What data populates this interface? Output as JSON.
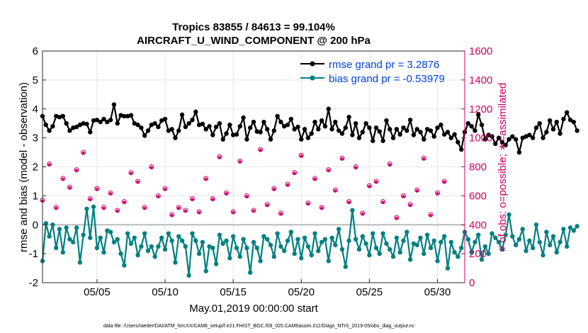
{
  "chart_data": {
    "type": "line",
    "title_line1": "Tropics 83855 / 84613 = 99.104%",
    "title_line2": "AIRCRAFT_U_WIND_COMPONENT @ 200 hPa",
    "xlabel": "May.01,2019 00:00:00 start",
    "ylabel_left": "rmse and bias (model - observation)",
    "ylabel_right": "# of obs: o=possible; ∗=assimilated",
    "ylim_left": [
      -2,
      6
    ],
    "ylim_right": [
      0,
      1600
    ],
    "xlim": [
      1,
      32
    ],
    "yticks_left": [
      "-2",
      "-1",
      "0",
      "1",
      "2",
      "3",
      "4",
      "5",
      "6"
    ],
    "yticks_right": [
      "0",
      "200",
      "400",
      "600",
      "800",
      "1000",
      "1200",
      "1400",
      "1600"
    ],
    "xticks": [
      {
        "label": "05/05",
        "day": 5
      },
      {
        "label": "05/10",
        "day": 10
      },
      {
        "label": "05/15",
        "day": 15
      },
      {
        "label": "05/20",
        "day": 20
      },
      {
        "label": "05/25",
        "day": 25
      },
      {
        "label": "05/30",
        "day": 30
      }
    ],
    "legend": {
      "rmse_label": "rmse grand pr = 3.2876",
      "bias_label": "bias grand pr = -0.53979",
      "placement": "top-right"
    },
    "colors": {
      "rmse": "#000000",
      "bias": "#008080",
      "obs": "#cc0066",
      "zero_line": "#bbbbbb"
    },
    "series": [
      {
        "name": "rmse",
        "x_start": 1.0,
        "x_step": 0.25,
        "values": [
          3.75,
          3.45,
          3.25,
          3.4,
          3.75,
          3.72,
          3.75,
          3.5,
          3.25,
          3.35,
          3.38,
          3.45,
          3.5,
          3.48,
          3.2,
          3.6,
          3.62,
          3.55,
          3.65,
          3.55,
          3.62,
          4.15,
          3.5,
          3.78,
          3.75,
          3.75,
          3.78,
          3.5,
          3.45,
          3.35,
          3.08,
          3.25,
          3.45,
          3.5,
          3.38,
          3.6,
          3.65,
          3.25,
          3.3,
          3.0,
          3.25,
          3.8,
          3.38,
          3.5,
          3.62,
          3.9,
          3.45,
          3.48,
          3.3,
          3.4,
          3.1,
          3.38,
          3.5,
          2.95,
          3.15,
          3.45,
          3.1,
          3.12,
          3.4,
          3.7,
          2.95,
          3.35,
          3.55,
          3.22,
          3.2,
          3.55,
          3.3,
          2.95,
          3.25,
          3.75,
          3.55,
          3.4,
          3.45,
          3.65,
          3.3,
          3.38,
          2.95,
          3.3,
          3.0,
          3.15,
          3.55,
          3.3,
          3.6,
          3.4,
          4.0,
          3.3,
          3.55,
          3.25,
          3.15,
          3.35,
          3.72,
          3.1,
          3.5,
          3.0,
          3.2,
          3.5,
          3.35,
          2.9,
          3.35,
          3.22,
          2.9,
          3.6,
          3.3,
          3.0,
          3.3,
          3.12,
          3.35,
          3.25,
          3.62,
          3.1,
          3.3,
          3.2,
          2.95,
          3.3,
          3.25,
          3.05,
          3.35,
          3.45,
          3.12,
          3.2,
          3.0,
          3.12,
          2.85,
          2.6,
          3.2,
          3.5,
          3.4,
          3.25,
          3.8,
          3.45,
          2.95,
          3.1,
          3.05,
          2.8,
          3.0,
          2.85,
          2.75,
          2.95,
          3.05,
          2.95,
          2.5,
          3.0,
          3.05,
          3.1,
          3.0,
          3.35,
          3.5,
          3.0,
          3.2,
          3.6,
          3.3,
          3.55,
          3.15,
          3.65,
          3.88,
          3.62,
          3.55,
          3.25
        ]
      },
      {
        "name": "bias",
        "x_start": 1.0,
        "x_step": 0.25,
        "values": [
          -1.25,
          0.05,
          -0.4,
          0.0,
          -0.8,
          -0.15,
          -0.95,
          -0.1,
          -0.5,
          -0.6,
          -0.1,
          -1.3,
          -0.35,
          0.55,
          -0.45,
          0.62,
          -0.8,
          -0.45,
          -0.95,
          -0.2,
          -0.25,
          -0.6,
          -0.5,
          -1.0,
          -1.4,
          -0.3,
          -0.65,
          -0.45,
          -1.05,
          -0.75,
          -0.3,
          -0.9,
          -0.75,
          -1.1,
          -0.75,
          -0.45,
          -0.85,
          -0.3,
          -0.55,
          -1.3,
          -0.4,
          -0.55,
          -0.75,
          -1.75,
          -0.3,
          -0.55,
          -1.0,
          -0.6,
          -1.6,
          -0.75,
          -0.8,
          -1.35,
          -0.35,
          -0.65,
          -0.55,
          -1.15,
          -0.4,
          -0.8,
          -1.1,
          -0.5,
          -0.8,
          -1.65,
          -0.6,
          -0.8,
          -1.25,
          -0.4,
          -0.5,
          -0.7,
          -1.1,
          -0.3,
          -0.75,
          -0.9,
          -0.55,
          -0.25,
          -1.0,
          -0.5,
          -1.15,
          -0.45,
          -0.75,
          -1.05,
          -0.3,
          -0.9,
          -0.6,
          -0.5,
          -1.25,
          -0.45,
          -0.7,
          -0.15,
          -0.85,
          -1.45,
          -0.55,
          0.5,
          -0.5,
          -0.85,
          -0.4,
          -0.65,
          -1.05,
          -0.3,
          -0.8,
          -1.0,
          -0.3,
          -0.65,
          -0.85,
          -1.1,
          -0.45,
          -0.95,
          -0.55,
          -0.25,
          -1.2,
          -0.65,
          -0.7,
          -0.45,
          -1.0,
          -0.35,
          -0.8,
          -0.55,
          -1.25,
          -0.6,
          -0.4,
          -1.5,
          -0.6,
          -0.95,
          -1.1,
          -0.8,
          -0.25,
          -0.5,
          -0.95,
          -0.6,
          -0.35,
          -1.2,
          -0.75,
          -1.0,
          -0.3,
          -0.45,
          -0.6,
          -0.85,
          -0.35,
          0.35,
          -0.4,
          -0.7,
          -0.5,
          -0.15,
          -0.9,
          -0.55,
          -0.8,
          0.0,
          -0.6,
          -1.05,
          -0.25,
          -0.7,
          -0.4,
          -0.95,
          -0.6,
          -0.15,
          -0.75,
          -0.1,
          -0.2,
          -0.05
        ]
      },
      {
        "name": "obs_possible",
        "x_start": 1.0,
        "x_step": 0.5,
        "values": [
          570,
          820,
          520,
          720,
          660,
          780,
          900,
          580,
          650,
          520,
          620,
          500,
          560,
          760,
          700,
          520,
          800,
          600,
          650,
          470,
          520,
          500,
          580,
          490,
          720,
          580,
          870,
          620,
          490,
          840,
          600,
          500,
          920,
          540,
          650,
          480,
          680,
          760,
          880,
          550,
          720,
          520,
          780,
          640,
          860,
          560,
          800,
          480,
          670,
          700,
          560,
          820,
          450,
          600,
          540,
          640,
          860,
          470,
          620,
          700
        ]
      },
      {
        "name": "obs_assimilated",
        "x_start": 1.0,
        "x_step": 0.5,
        "values": [
          565,
          815,
          515,
          715,
          655,
          775,
          895,
          575,
          645,
          515,
          615,
          495,
          555,
          755,
          695,
          515,
          795,
          595,
          645,
          465,
          515,
          495,
          575,
          485,
          715,
          575,
          865,
          615,
          485,
          835,
          595,
          495,
          915,
          535,
          645,
          475,
          675,
          755,
          875,
          545,
          715,
          515,
          775,
          635,
          855,
          555,
          795,
          475,
          665,
          695,
          555,
          815,
          445,
          595,
          535,
          635,
          855,
          465,
          615,
          695
        ]
      }
    ]
  },
  "footer": {
    "data_file": "data file: /Users/raeder/DAI/ATM_forcXX/CAM6_setup/f.e21.FHIST_BGC.f09_025.CAM6assim.011/Diags_NTrS_2019-05/obs_diag_output.nc"
  }
}
